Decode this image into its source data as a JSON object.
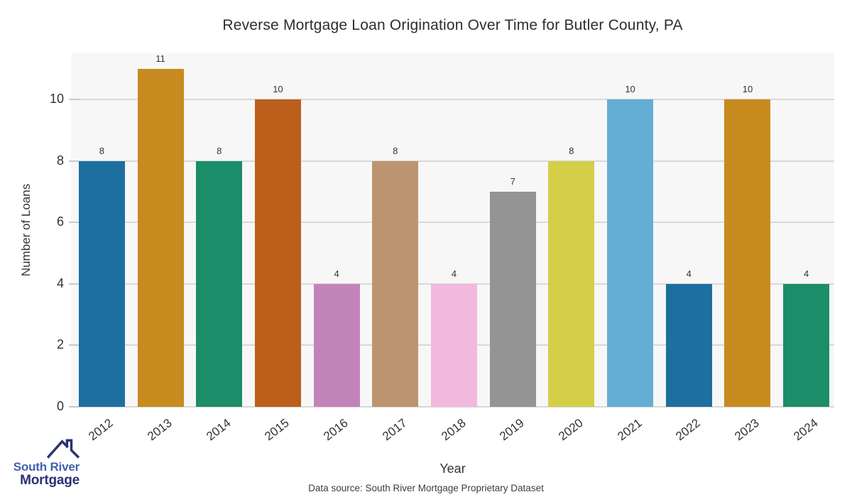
{
  "title": "Reverse Mortgage Loan Origination Over Time for Butler County, PA",
  "footer": {
    "datasource": "Data source: South River Mortgage Proprietary Dataset"
  },
  "logo": {
    "line1": "South River",
    "line2": "Mortgage",
    "line1_color": "#4061ae",
    "line2_color": "#2b3173",
    "icon_color": "#2b3173"
  },
  "chart_data": {
    "type": "bar",
    "title": "Reverse Mortgage Loan Origination Over Time for Butler County, PA",
    "xlabel": "Year",
    "ylabel": "Number of Loans",
    "categories": [
      "2012",
      "2013",
      "2014",
      "2015",
      "2016",
      "2017",
      "2018",
      "2019",
      "2020",
      "2021",
      "2022",
      "2023",
      "2024"
    ],
    "values": [
      8,
      11,
      8,
      10,
      4,
      8,
      4,
      7,
      8,
      10,
      4,
      10,
      4
    ],
    "bar_colors": [
      "#1d6fa0",
      "#c78b20",
      "#1b8d68",
      "#bb5f1b",
      "#c284b8",
      "#bd9470",
      "#f3b8de",
      "#949494",
      "#d5ce48",
      "#64aed6",
      "#1d6fa0",
      "#c78b20",
      "#1b8d68"
    ],
    "yticks": [
      0,
      2,
      4,
      6,
      8,
      10
    ],
    "ylim": [
      0,
      11.5
    ],
    "grid": "horizontal",
    "legend": "none",
    "panel_bg": "#f7f7f7",
    "grid_color": "#d8d8d8",
    "tick_color": "#c9c9c9",
    "text_color": "#333333"
  }
}
